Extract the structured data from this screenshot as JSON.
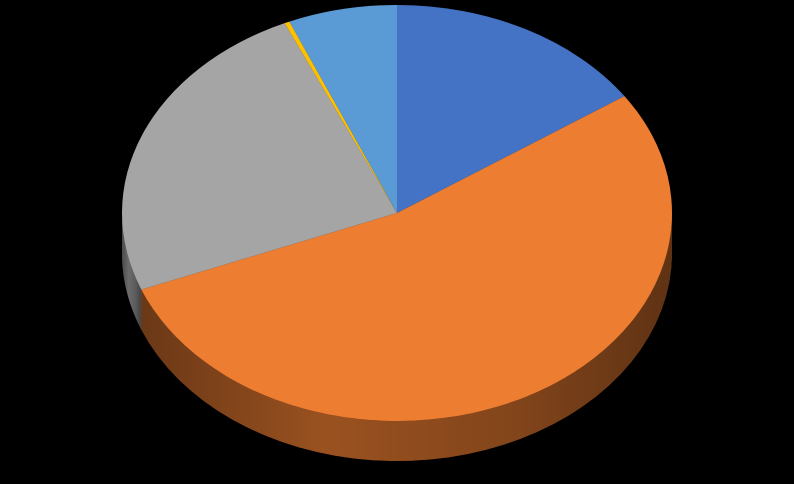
{
  "chart_data": {
    "type": "pie",
    "style": "3d",
    "title": "",
    "start": "12 o'clock",
    "direction": "clockwise",
    "background": "#000000",
    "slices": [
      {
        "value": 15.5,
        "color": "#4472C4"
      },
      {
        "value": 53.5,
        "color": "#ED7D31"
      },
      {
        "value": 24.3,
        "color": "#A5A5A5"
      },
      {
        "value": 0.3,
        "color": "#FFC000"
      },
      {
        "value": 6.4,
        "color": "#5B9BD5"
      }
    ]
  }
}
